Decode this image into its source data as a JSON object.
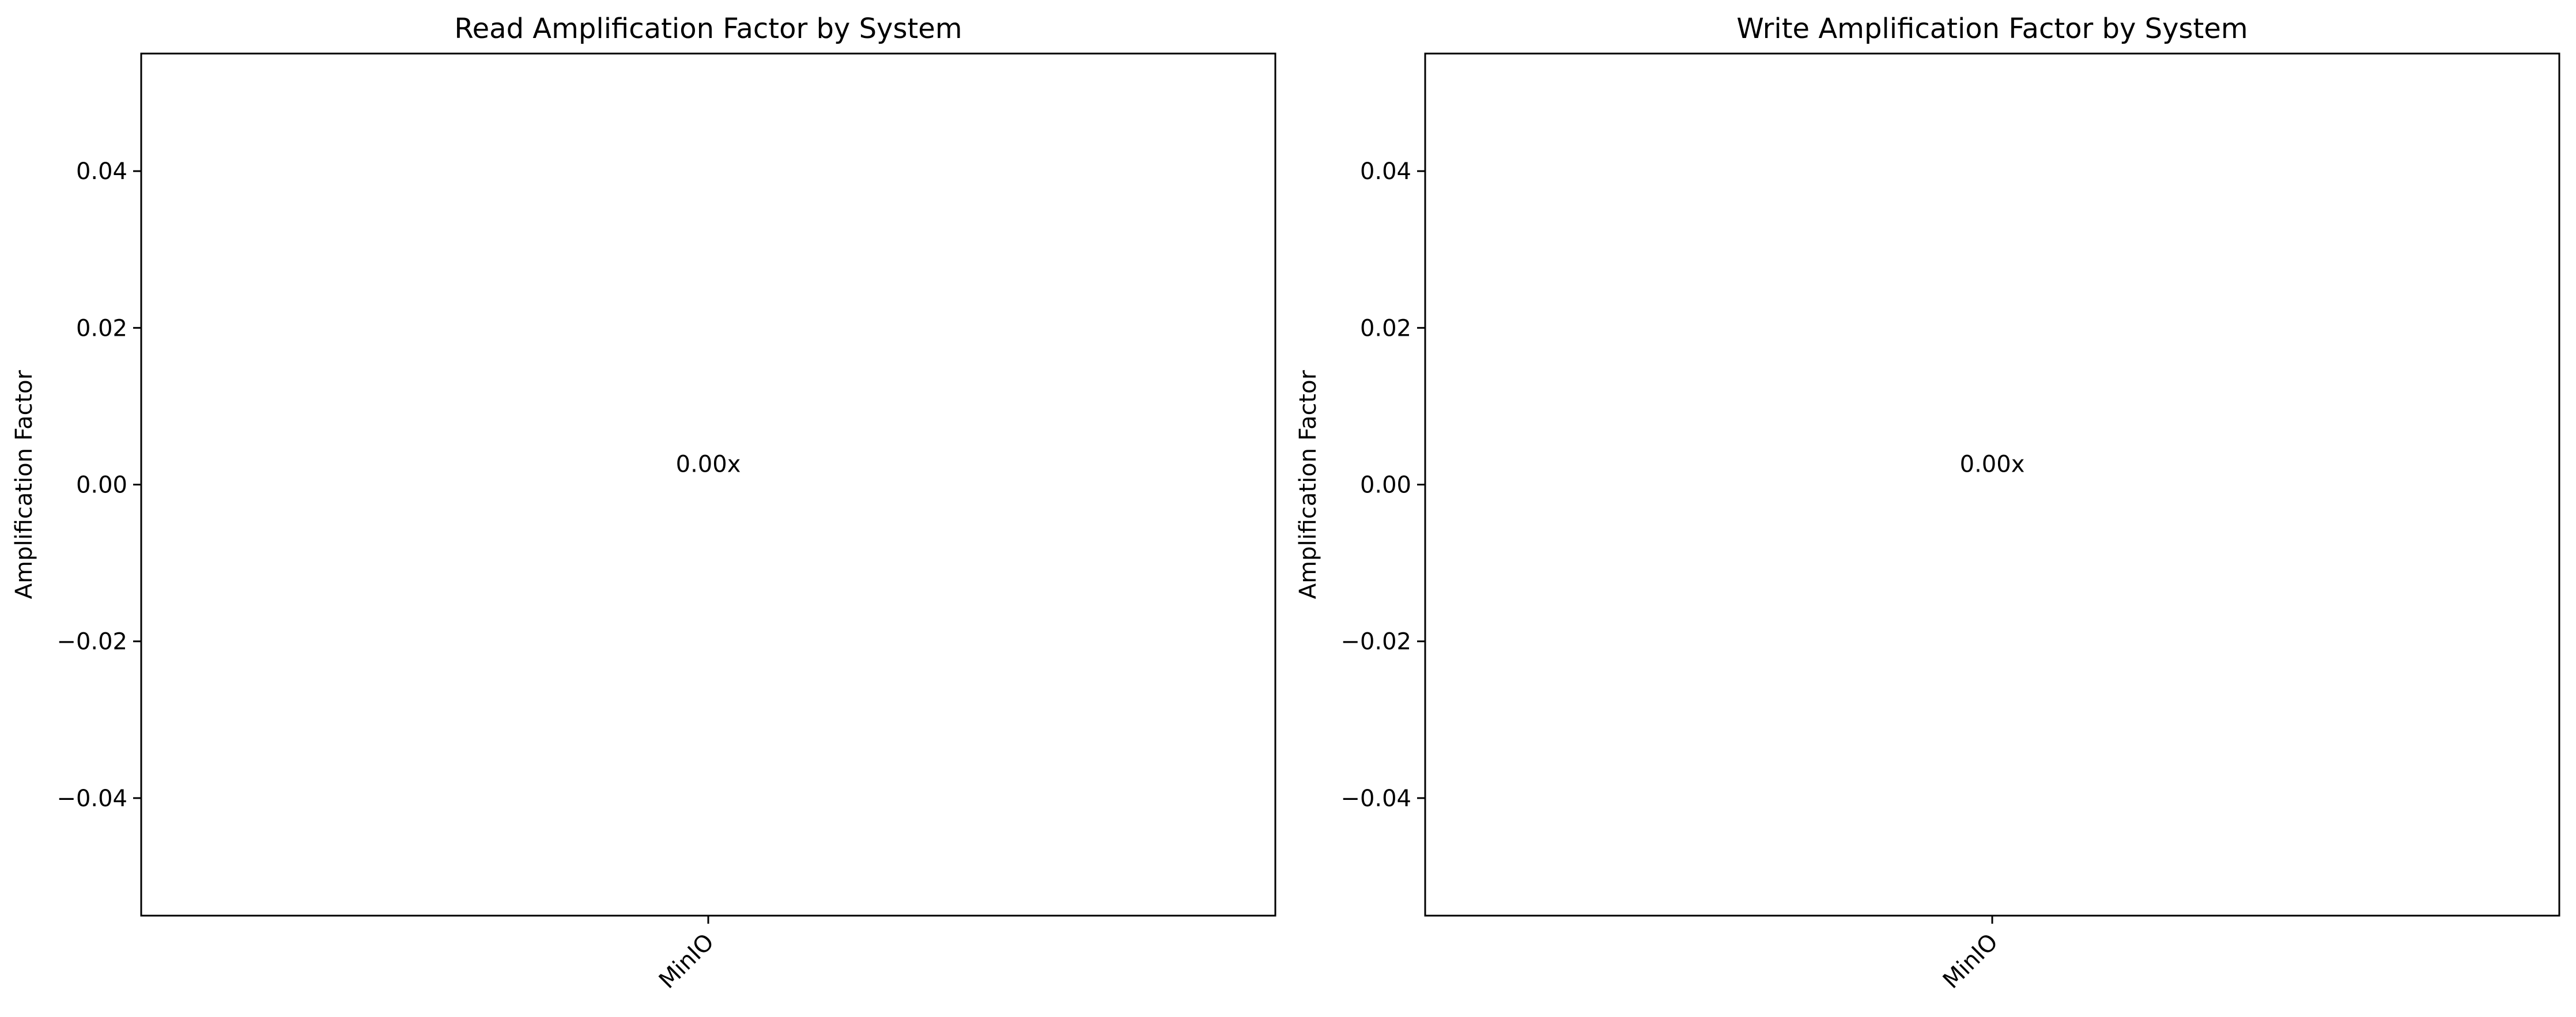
{
  "chart_data": [
    {
      "type": "bar",
      "title": "Read Amplification Factor by System",
      "xlabel": "",
      "ylabel": "Amplification Factor",
      "categories": [
        "MinIO"
      ],
      "values": [
        0.0
      ],
      "data_labels": [
        "0.00x"
      ],
      "ylim": [
        -0.055,
        0.055
      ],
      "yticks": [
        -0.04,
        -0.02,
        0.0,
        0.02,
        0.04
      ],
      "ytick_labels": [
        "−0.04",
        "−0.02",
        "0.00",
        "0.02",
        "0.04"
      ],
      "xtick_rotation": 45,
      "grid": false,
      "legend": "none"
    },
    {
      "type": "bar",
      "title": "Write Amplification Factor by System",
      "xlabel": "",
      "ylabel": "Amplification Factor",
      "categories": [
        "MinIO"
      ],
      "values": [
        0.0
      ],
      "data_labels": [
        "0.00x"
      ],
      "ylim": [
        -0.055,
        0.055
      ],
      "yticks": [
        -0.04,
        -0.02,
        0.0,
        0.02,
        0.04
      ],
      "ytick_labels": [
        "−0.04",
        "−0.02",
        "0.00",
        "0.02",
        "0.04"
      ],
      "xtick_rotation": 45,
      "grid": false,
      "legend": "none"
    }
  ]
}
